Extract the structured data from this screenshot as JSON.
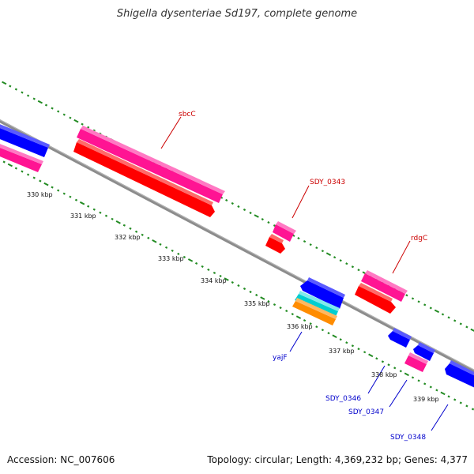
{
  "title": "Shigella dysenteriae Sd197, complete genome",
  "footer": {
    "accession": "Accession: NC_007606",
    "info": "Topology: circular; Length: 4,369,232 bp; Genes: 4,377"
  },
  "colors": {
    "forward_gene": "#ff1493",
    "forward_cds": "#ff0000",
    "reverse_gene": "#0000ff",
    "reverse_misc": "#00ced1",
    "reverse_cds": "#ff8c00",
    "backbone": "#8c8c8c",
    "tick": "#228b22",
    "label_forward": "#cc0000",
    "label_reverse": "#0000cc"
  },
  "ticks": [
    "330 kbp",
    "331 kbp",
    "332 kbp",
    "333 kbp",
    "334 kbp",
    "335 kbp",
    "336 kbp",
    "337 kbp",
    "338 kbp",
    "339 kbp"
  ],
  "genes": [
    {
      "name": "sbcC",
      "strand": "forward"
    },
    {
      "name": "SDY_0343",
      "strand": "forward"
    },
    {
      "name": "rdgC",
      "strand": "forward"
    },
    {
      "name": "yajF",
      "strand": "reverse"
    },
    {
      "name": "SDY_0346",
      "strand": "reverse"
    },
    {
      "name": "SDY_0347",
      "strand": "reverse"
    },
    {
      "name": "SDY_0348",
      "strand": "reverse"
    }
  ]
}
